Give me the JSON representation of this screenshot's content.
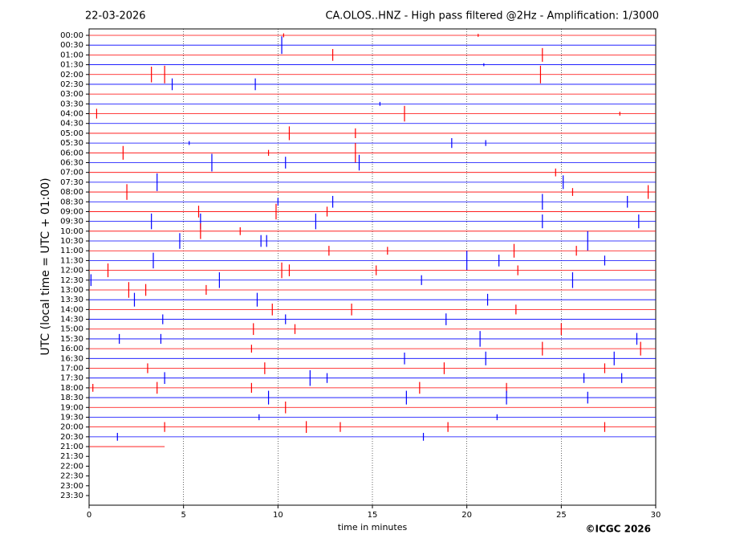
{
  "chart_data": {
    "type": "helicorder",
    "date": "22-03-2026",
    "title": "CA.OLOS..HNZ - High pass filtered @2Hz - Amplification: 1/3000",
    "ylabel": "UTC (local time = UTC + 01:00)",
    "xlabel": "time in minutes",
    "copyright": "©ICGC 2026",
    "xlim": [
      0,
      30
    ],
    "xticks": [
      0,
      5,
      10,
      15,
      20,
      25,
      30
    ],
    "grid": true,
    "rows": [
      {
        "label": "00:00",
        "color": "#ff0000",
        "end": 30,
        "events": [
          [
            10.3,
            0.2
          ],
          [
            20.6,
            0.15
          ]
        ]
      },
      {
        "label": "00:30",
        "color": "#0000ff",
        "end": 30,
        "events": [
          [
            10.2,
            0.9
          ]
        ]
      },
      {
        "label": "01:00",
        "color": "#ff0000",
        "end": 30,
        "events": [
          [
            12.9,
            0.6
          ],
          [
            24.0,
            0.7
          ]
        ]
      },
      {
        "label": "01:30",
        "color": "#0000ff",
        "end": 30,
        "events": [
          [
            20.9,
            0.15
          ]
        ]
      },
      {
        "label": "02:00",
        "color": "#ff0000",
        "end": 30,
        "events": [
          [
            3.3,
            0.8
          ],
          [
            4.0,
            0.9
          ],
          [
            23.9,
            0.9
          ]
        ]
      },
      {
        "label": "02:30",
        "color": "#0000ff",
        "end": 30,
        "events": [
          [
            4.4,
            0.6
          ],
          [
            8.8,
            0.6
          ]
        ]
      },
      {
        "label": "03:00",
        "color": "#ff0000",
        "end": 30,
        "events": []
      },
      {
        "label": "03:30",
        "color": "#0000ff",
        "end": 30,
        "events": [
          [
            15.4,
            0.2
          ]
        ]
      },
      {
        "label": "04:00",
        "color": "#ff0000",
        "end": 30,
        "events": [
          [
            0.4,
            0.5
          ],
          [
            16.7,
            0.8
          ],
          [
            28.1,
            0.2
          ]
        ]
      },
      {
        "label": "04:30",
        "color": "#0000ff",
        "end": 30,
        "events": []
      },
      {
        "label": "05:00",
        "color": "#ff0000",
        "end": 30,
        "events": [
          [
            10.6,
            0.7
          ],
          [
            14.1,
            0.5
          ]
        ]
      },
      {
        "label": "05:30",
        "color": "#0000ff",
        "end": 30,
        "events": [
          [
            5.3,
            0.2
          ],
          [
            19.2,
            0.5
          ],
          [
            21.0,
            0.3
          ]
        ]
      },
      {
        "label": "06:00",
        "color": "#ff0000",
        "end": 30,
        "events": [
          [
            1.8,
            0.7
          ],
          [
            9.5,
            0.3
          ],
          [
            14.1,
            1.0
          ]
        ]
      },
      {
        "label": "06:30",
        "color": "#0000ff",
        "end": 30,
        "events": [
          [
            6.5,
            0.9
          ],
          [
            10.4,
            0.6
          ],
          [
            14.3,
            0.8
          ]
        ]
      },
      {
        "label": "07:00",
        "color": "#ff0000",
        "end": 30,
        "events": [
          [
            24.7,
            0.4
          ]
        ]
      },
      {
        "label": "07:30",
        "color": "#0000ff",
        "end": 30,
        "events": [
          [
            3.6,
            0.9
          ],
          [
            25.1,
            0.7
          ]
        ]
      },
      {
        "label": "08:00",
        "color": "#ff0000",
        "end": 30,
        "events": [
          [
            2.0,
            0.8
          ],
          [
            25.6,
            0.4
          ],
          [
            29.6,
            0.7
          ]
        ]
      },
      {
        "label": "08:30",
        "color": "#0000ff",
        "end": 30,
        "events": [
          [
            10.0,
            0.4
          ],
          [
            12.9,
            0.6
          ],
          [
            24.0,
            0.8
          ],
          [
            28.5,
            0.6
          ]
        ]
      },
      {
        "label": "09:00",
        "color": "#ff0000",
        "end": 30,
        "events": [
          [
            5.8,
            0.6
          ],
          [
            9.9,
            0.8
          ],
          [
            12.6,
            0.5
          ]
        ]
      },
      {
        "label": "09:30",
        "color": "#0000ff",
        "end": 30,
        "events": [
          [
            3.3,
            0.8
          ],
          [
            5.9,
            0.8
          ],
          [
            12.0,
            0.8
          ],
          [
            24.0,
            0.7
          ],
          [
            29.1,
            0.7
          ]
        ]
      },
      {
        "label": "10:00",
        "color": "#ff0000",
        "end": 30,
        "events": [
          [
            5.9,
            0.8
          ],
          [
            8.0,
            0.4
          ]
        ]
      },
      {
        "label": "10:30",
        "color": "#0000ff",
        "end": 30,
        "events": [
          [
            4.8,
            0.8
          ],
          [
            9.1,
            0.6
          ],
          [
            9.4,
            0.6
          ],
          [
            26.4,
            1.0
          ]
        ]
      },
      {
        "label": "11:00",
        "color": "#ff0000",
        "end": 30,
        "events": [
          [
            12.7,
            0.5
          ],
          [
            15.8,
            0.4
          ],
          [
            22.5,
            0.7
          ],
          [
            25.8,
            0.5
          ]
        ]
      },
      {
        "label": "11:30",
        "color": "#0000ff",
        "end": 30,
        "events": [
          [
            3.4,
            0.8
          ],
          [
            20.0,
            1.0
          ],
          [
            21.7,
            0.6
          ],
          [
            27.3,
            0.5
          ]
        ]
      },
      {
        "label": "12:00",
        "color": "#ff0000",
        "end": 30,
        "events": [
          [
            1.0,
            0.7
          ],
          [
            10.2,
            0.8
          ],
          [
            10.6,
            0.6
          ],
          [
            15.2,
            0.5
          ],
          [
            22.7,
            0.5
          ]
        ]
      },
      {
        "label": "12:30",
        "color": "#0000ff",
        "end": 30,
        "events": [
          [
            0.1,
            0.6
          ],
          [
            6.9,
            0.8
          ],
          [
            17.6,
            0.5
          ],
          [
            25.6,
            0.8
          ]
        ]
      },
      {
        "label": "13:00",
        "color": "#ff0000",
        "end": 30,
        "events": [
          [
            2.1,
            0.8
          ],
          [
            3.0,
            0.6
          ],
          [
            6.2,
            0.5
          ]
        ]
      },
      {
        "label": "13:30",
        "color": "#0000ff",
        "end": 30,
        "events": [
          [
            2.4,
            0.7
          ],
          [
            8.9,
            0.7
          ],
          [
            21.1,
            0.6
          ]
        ]
      },
      {
        "label": "14:00",
        "color": "#ff0000",
        "end": 30,
        "events": [
          [
            9.7,
            0.6
          ],
          [
            13.9,
            0.6
          ],
          [
            22.6,
            0.5
          ]
        ]
      },
      {
        "label": "14:30",
        "color": "#0000ff",
        "end": 30,
        "events": [
          [
            3.9,
            0.5
          ],
          [
            10.4,
            0.5
          ],
          [
            18.9,
            0.6
          ]
        ]
      },
      {
        "label": "15:00",
        "color": "#ff0000",
        "end": 30,
        "events": [
          [
            8.7,
            0.6
          ],
          [
            10.9,
            0.5
          ],
          [
            25.0,
            0.6
          ]
        ]
      },
      {
        "label": "15:30",
        "color": "#0000ff",
        "end": 30,
        "events": [
          [
            1.6,
            0.5
          ],
          [
            3.8,
            0.5
          ],
          [
            20.7,
            0.8
          ],
          [
            29.0,
            0.6
          ]
        ]
      },
      {
        "label": "16:00",
        "color": "#ff0000",
        "end": 30,
        "events": [
          [
            8.6,
            0.4
          ],
          [
            24.0,
            0.7
          ],
          [
            29.2,
            0.7
          ]
        ]
      },
      {
        "label": "16:30",
        "color": "#0000ff",
        "end": 30,
        "events": [
          [
            16.7,
            0.6
          ],
          [
            21.0,
            0.7
          ],
          [
            27.8,
            0.7
          ]
        ]
      },
      {
        "label": "17:00",
        "color": "#ff0000",
        "end": 30,
        "events": [
          [
            3.1,
            0.5
          ],
          [
            9.3,
            0.6
          ],
          [
            18.8,
            0.6
          ],
          [
            27.3,
            0.5
          ]
        ]
      },
      {
        "label": "17:30",
        "color": "#0000ff",
        "end": 30,
        "events": [
          [
            4.0,
            0.6
          ],
          [
            11.7,
            0.8
          ],
          [
            12.6,
            0.5
          ],
          [
            26.2,
            0.5
          ],
          [
            28.2,
            0.5
          ]
        ]
      },
      {
        "label": "18:00",
        "color": "#ff0000",
        "end": 30,
        "events": [
          [
            0.2,
            0.4
          ],
          [
            3.6,
            0.6
          ],
          [
            8.6,
            0.5
          ],
          [
            17.5,
            0.6
          ],
          [
            22.1,
            0.5
          ]
        ]
      },
      {
        "label": "18:30",
        "color": "#0000ff",
        "end": 30,
        "events": [
          [
            9.5,
            0.7
          ],
          [
            16.8,
            0.7
          ],
          [
            22.1,
            0.7
          ],
          [
            26.4,
            0.6
          ]
        ]
      },
      {
        "label": "19:00",
        "color": "#ff0000",
        "end": 30,
        "events": [
          [
            10.4,
            0.6
          ]
        ]
      },
      {
        "label": "19:30",
        "color": "#0000ff",
        "end": 30,
        "events": [
          [
            9.0,
            0.3
          ],
          [
            21.6,
            0.3
          ]
        ]
      },
      {
        "label": "20:00",
        "color": "#ff0000",
        "end": 30,
        "events": [
          [
            4.0,
            0.5
          ],
          [
            11.5,
            0.6
          ],
          [
            13.3,
            0.5
          ],
          [
            19.0,
            0.5
          ],
          [
            27.3,
            0.5
          ]
        ]
      },
      {
        "label": "20:30",
        "color": "#0000ff",
        "end": 30,
        "events": [
          [
            1.5,
            0.4
          ],
          [
            17.7,
            0.4
          ]
        ]
      },
      {
        "label": "21:00",
        "color": "#ff0000",
        "end": 4,
        "events": []
      },
      {
        "label": "21:30",
        "color": "#0000ff",
        "end": null,
        "events": []
      },
      {
        "label": "22:00",
        "color": "#ff0000",
        "end": null,
        "events": []
      },
      {
        "label": "22:30",
        "color": "#0000ff",
        "end": null,
        "events": []
      },
      {
        "label": "23:00",
        "color": "#ff0000",
        "end": null,
        "events": []
      },
      {
        "label": "23:30",
        "color": "#0000ff",
        "end": null,
        "events": []
      }
    ]
  }
}
